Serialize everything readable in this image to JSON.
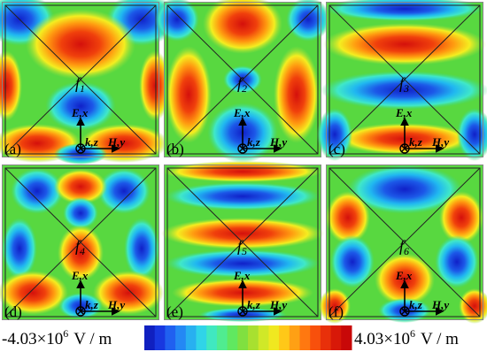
{
  "panels": [
    {
      "label": "(a)",
      "f": "f",
      "index": "1"
    },
    {
      "label": "(b)",
      "f": "f",
      "index": "2"
    },
    {
      "label": "(c)",
      "f": "f",
      "index": "3"
    },
    {
      "label": "(d)",
      "f": "f",
      "index": "4"
    },
    {
      "label": "(e)",
      "f": "f",
      "index": "5"
    },
    {
      "label": "(f)",
      "f": "f",
      "index": "6"
    }
  ],
  "axes": {
    "e": "E,x",
    "k": "k,z",
    "h": "H,y"
  },
  "colorbar": {
    "min": {
      "mantissa": "-4.03×10",
      "exponent": "6",
      "unit": "V / m"
    },
    "max": {
      "mantissa": "4.03×10",
      "exponent": "6",
      "unit": "V / m"
    }
  }
}
